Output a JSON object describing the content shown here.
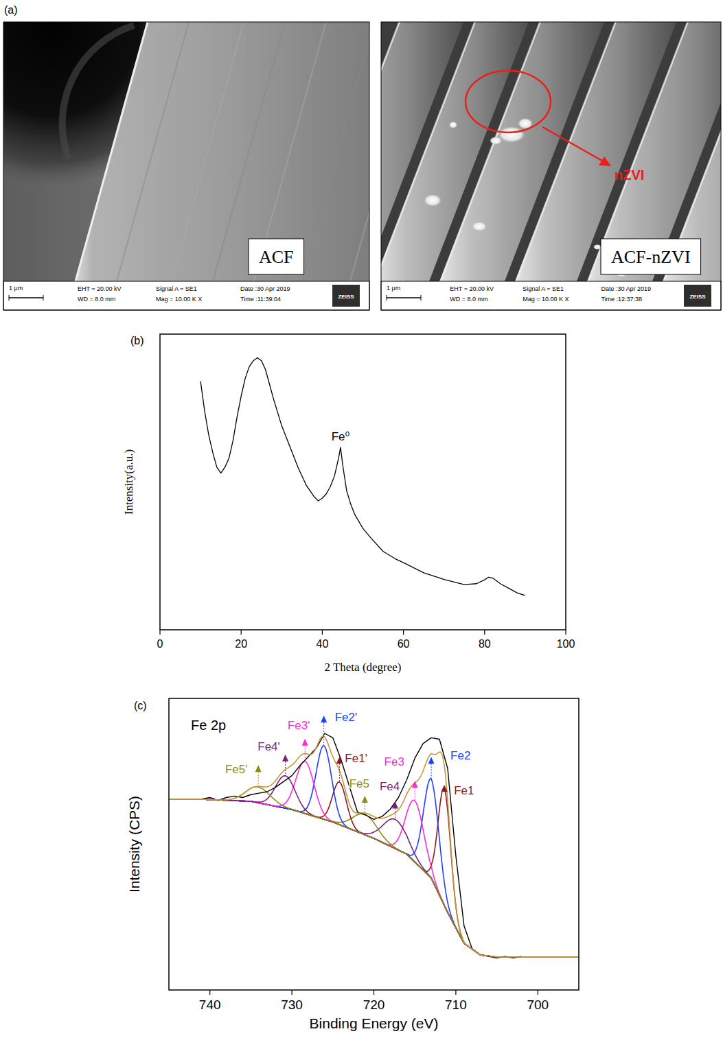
{
  "panel_a": {
    "letter": "(a)",
    "images": [
      {
        "label": "ACF",
        "scale_bar": "1 μm",
        "eht": "EHT = 20.00 kV",
        "wd": "WD = 8.0 mm",
        "signal": "Signal A = SE1",
        "mag": "Mag = 10.00 K X",
        "date": "Date :30 Apr 2019",
        "time": "Time :11:39:04",
        "logo": "ZEISS"
      },
      {
        "label": "ACF-nZVI",
        "scale_bar": "1 μm",
        "eht": "EHT = 20.00 kV",
        "wd": "WD = 8.0 mm",
        "signal": "Signal A = SE1",
        "mag": "Mag = 10.00 K X",
        "date": "Date :30 Apr 2019",
        "time": "Time :12:37:38",
        "logo": "ZEISS",
        "annotation": "nZVI"
      }
    ]
  },
  "chart_data": [
    {
      "type": "line",
      "panel_label": "(b)",
      "x_label": "2 Theta (degree)",
      "y_label": "Intensity(a.u.)",
      "xlim": [
        0,
        100
      ],
      "xticks": [
        0,
        20,
        40,
        60,
        80,
        100
      ],
      "ylim": [
        0,
        100
      ],
      "tick_labels": "x",
      "x": [
        10,
        11,
        12,
        13,
        14,
        15,
        16,
        17,
        18,
        19,
        20,
        21,
        22,
        23,
        24,
        25,
        26,
        27,
        28,
        30,
        32,
        34,
        36,
        38,
        39,
        40,
        41,
        42,
        43,
        44,
        44.5,
        45,
        46,
        47,
        48,
        50,
        52,
        55,
        58,
        60,
        65,
        70,
        75,
        78,
        80,
        81,
        82,
        84,
        86,
        88,
        90
      ],
      "series": [
        {
          "color": "#000000",
          "values": [
            84,
            74,
            66,
            60,
            55,
            53,
            55,
            58,
            64,
            72,
            79,
            85,
            89,
            91,
            92,
            91,
            88,
            83,
            78,
            69,
            62,
            55,
            49,
            45,
            43.6,
            44.5,
            46,
            48.5,
            52,
            58,
            61.7,
            56,
            47,
            42.5,
            39,
            34.3,
            31,
            26.5,
            24,
            22.7,
            19.3,
            17,
            15.3,
            15.6,
            16.9,
            17.8,
            17.5,
            15.5,
            14,
            12.5,
            11.6
          ]
        }
      ],
      "annotations": [
        {
          "text": "Fe⁰",
          "x": 44.5,
          "y": 61.7
        }
      ]
    },
    {
      "type": "line",
      "panel_label": "(c)",
      "title": "Fe 2p",
      "x_label": "Binding Energy (eV)",
      "y_label": "Intensity (CPS)",
      "xlim": [
        745,
        695
      ],
      "xticks": [
        740,
        730,
        720,
        710,
        700
      ],
      "ylim": [
        0,
        100
      ],
      "tick_labels": "x",
      "series": [
        {
          "type": "line",
          "color": "#000000",
          "x": [
            741,
            740,
            739,
            738,
            737,
            736,
            735,
            734,
            733,
            732,
            731,
            730,
            729,
            728,
            727,
            726,
            725,
            724,
            723,
            722,
            721,
            720,
            719,
            718,
            717,
            716,
            715,
            714,
            713,
            712,
            711,
            710,
            709,
            708,
            707,
            706,
            705,
            704,
            703,
            702
          ],
          "values": [
            65.5,
            66,
            65,
            66,
            66.5,
            66,
            67,
            67.5,
            68,
            69.5,
            71.5,
            73.5,
            77,
            80,
            83,
            88,
            86.5,
            79,
            70,
            61,
            60,
            58.5,
            59.5,
            62,
            66,
            72,
            79.5,
            84.5,
            86.5,
            86,
            76,
            46,
            22,
            14,
            12,
            11.5,
            11,
            11.5,
            11,
            11.5
          ]
        },
        {
          "type": "baseline",
          "color": "#3fa3a8",
          "x": [
            741,
            735,
            730,
            725,
            720,
            716,
            713,
            711,
            709,
            707,
            705,
            702
          ],
          "values": [
            65.4,
            64.7,
            61.9,
            57.6,
            52,
            46.6,
            38.4,
            26.6,
            16,
            12,
            11.3,
            11.3
          ]
        },
        {
          "type": "envelope",
          "color": "#c8963c"
        }
      ],
      "peaks": [
        {
          "name": "Fe1",
          "color": "#8b1a1a",
          "center": 711.4,
          "height": 40,
          "fwhm": 1.8
        },
        {
          "name": "Fe2",
          "color": "#1f3fff",
          "center": 713.0,
          "height": 34,
          "fwhm": 2.2
        },
        {
          "name": "Fe3",
          "color": "#ff2ad4",
          "center": 715.0,
          "height": 21,
          "fwhm": 2.6
        },
        {
          "name": "Fe4",
          "color": "#7b1f7b",
          "center": 717.4,
          "height": 10,
          "fwhm": 3.5
        },
        {
          "name": "Fe5",
          "color": "#8c8c10",
          "center": 721.1,
          "height": 7,
          "fwhm": 3.5
        },
        {
          "name": "Fe1'",
          "color": "#8b1a1a",
          "center": 724.2,
          "height": 14.6,
          "fwhm": 2.0
        },
        {
          "name": "Fe2'",
          "color": "#1f3fff",
          "center": 726.1,
          "height": 25.2,
          "fwhm": 2.2
        },
        {
          "name": "Fe3'",
          "color": "#ff2ad4",
          "center": 728.4,
          "height": 17.9,
          "fwhm": 2.6
        },
        {
          "name": "Fe4'",
          "color": "#7b1f7b",
          "center": 730.8,
          "height": 11.1,
          "fwhm": 2.8
        },
        {
          "name": "Fe5'",
          "color": "#8c8c10",
          "center": 734.1,
          "height": 5.4,
          "fwhm": 3.5
        }
      ]
    }
  ]
}
